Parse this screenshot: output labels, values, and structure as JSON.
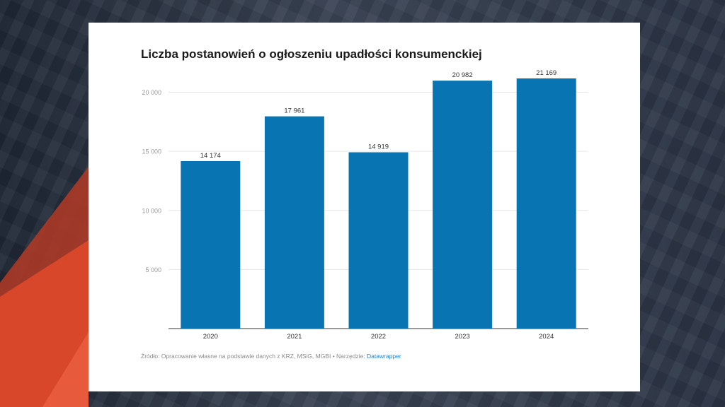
{
  "colors": {
    "bar": "#0874b1",
    "accent_red": "#d9472b",
    "gridline": "#e6e6e6",
    "baseline": "#333333"
  },
  "chart_data": {
    "type": "bar",
    "title": "Liczba postanowień o ogłoszeniu upadłości konsumenckiej",
    "xlabel": "",
    "ylabel": "",
    "categories": [
      "2020",
      "2021",
      "2022",
      "2023",
      "2024"
    ],
    "values": [
      14174,
      17961,
      14919,
      20982,
      21169
    ],
    "value_labels": [
      "14 174",
      "17 961",
      "14 919",
      "20 982",
      "21 169"
    ],
    "yticks": [
      5000,
      10000,
      15000,
      20000
    ],
    "ytick_labels": [
      "5 000",
      "10 000",
      "15 000",
      "20 000"
    ],
    "ylim": [
      0,
      21169
    ],
    "grid": true,
    "legend": "none"
  },
  "source": {
    "text": "Źródło: Opracowanie własne na podstawie danych z KRZ, MSiG, MGBI • Narzędzie:",
    "tool": "Datawrapper"
  }
}
